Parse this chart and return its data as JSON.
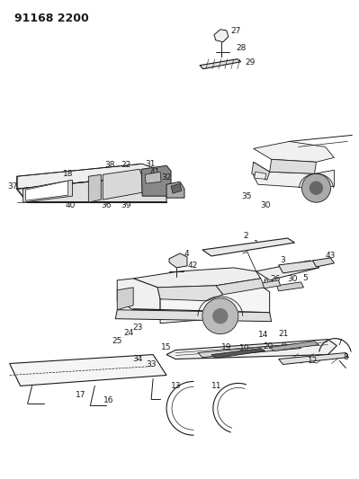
{
  "title": "91168 2200",
  "bg_color": "#ffffff",
  "lc": "#1a1a1a",
  "title_fontsize": 9,
  "label_fontsize": 6.5,
  "figsize": [
    3.99,
    5.33
  ],
  "dpi": 100
}
